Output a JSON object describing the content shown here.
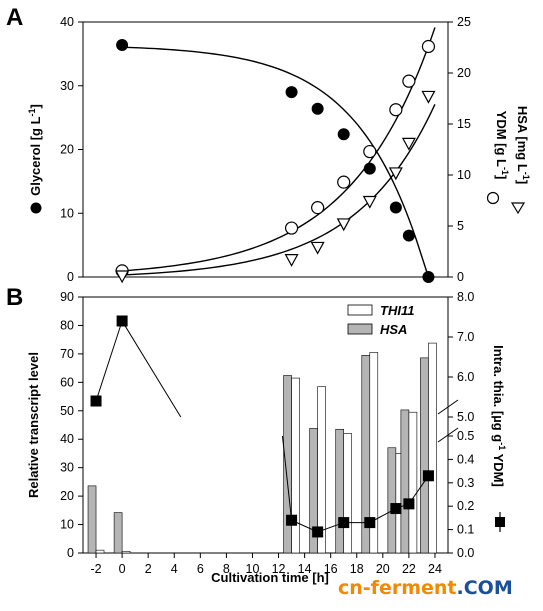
{
  "panel_a_label": "A",
  "panel_b_label": "B",
  "watermark": {
    "part1": "cn-ferment",
    "part2": ".COM",
    "color1": "#f08a00",
    "color2": "#1a4f9c"
  },
  "chart_data": [
    {
      "type": "line",
      "panel": "A",
      "xlim": [
        -3,
        25
      ],
      "y_left": {
        "label": "Glycerol [g L-1]",
        "lim": [
          0,
          40
        ],
        "ticks": [
          0,
          10,
          20,
          30,
          40
        ]
      },
      "y_right": {
        "label_ydm": "YDM [g L-1]",
        "label_hsa": "HSA [mg L-1]",
        "lim": [
          0,
          25
        ],
        "ticks": [
          0,
          5,
          10,
          15,
          20,
          25
        ]
      },
      "series": [
        {
          "name": "Glycerol",
          "marker": "filled-circle",
          "axis": "left",
          "points": [
            [
              0,
              36.4
            ],
            [
              13,
              29.0
            ],
            [
              15,
              26.4
            ],
            [
              17,
              22.4
            ],
            [
              19,
              17.0
            ],
            [
              21,
              10.9
            ],
            [
              22,
              6.5
            ],
            [
              23.5,
              0.0
            ]
          ]
        },
        {
          "name": "YDM",
          "marker": "open-circle",
          "axis": "right",
          "points": [
            [
              0,
              0.6
            ],
            [
              13,
              4.8
            ],
            [
              15,
              6.8
            ],
            [
              17,
              9.3
            ],
            [
              19,
              12.3
            ],
            [
              21,
              16.4
            ],
            [
              22,
              19.2
            ],
            [
              23.5,
              22.6
            ]
          ]
        },
        {
          "name": "HSA",
          "marker": "open-triangle-down",
          "axis": "right",
          "points": [
            [
              0,
              0.1
            ],
            [
              13,
              1.7
            ],
            [
              15,
              2.9
            ],
            [
              17,
              5.2
            ],
            [
              19,
              7.4
            ],
            [
              21,
              10.2
            ],
            [
              22,
              13.1
            ],
            [
              23.5,
              17.7
            ]
          ]
        }
      ]
    },
    {
      "type": "bar",
      "panel": "B",
      "xlabel": "Cultivation time [h]",
      "xlim": [
        -3,
        25
      ],
      "x_ticks": [
        -2,
        0,
        2,
        4,
        6,
        8,
        10,
        12,
        14,
        16,
        18,
        20,
        22,
        24
      ],
      "y_left": {
        "label": "Relative transcript level",
        "lim": [
          0,
          90
        ],
        "ticks": [
          0,
          10,
          20,
          30,
          40,
          50,
          60,
          70,
          80,
          90
        ]
      },
      "y_right": {
        "label": "Intra. thia. [µg g-1 YDM]",
        "ticks_lower": [
          "0.0",
          "0.1",
          "0.2",
          "0.3",
          "0.4",
          "0.5"
        ],
        "ticks_upper": [
          "5.0",
          "6.0",
          "7.0",
          "8.0"
        ]
      },
      "legend": [
        "THI11",
        "HSA"
      ],
      "bars": {
        "x": [
          -2,
          0,
          13,
          15,
          17,
          19,
          21,
          22,
          23.5
        ],
        "HSA": [
          23.6,
          14.2,
          62.4,
          43.8,
          43.5,
          69.5,
          37.0,
          50.3,
          68.6
        ],
        "THI11": [
          1.0,
          0.6,
          61.5,
          58.5,
          42.0,
          70.5,
          35.0,
          49.5,
          73.8
        ]
      },
      "thiamine": {
        "name": "Intra. thia.",
        "points": [
          [
            -2,
            5.4
          ],
          [
            0,
            7.4
          ],
          [
            13,
            0.14
          ],
          [
            15,
            0.09
          ],
          [
            17,
            0.13
          ],
          [
            19,
            0.13
          ],
          [
            21,
            0.19
          ],
          [
            22,
            0.21
          ],
          [
            23.5,
            0.33
          ]
        ]
      }
    }
  ]
}
